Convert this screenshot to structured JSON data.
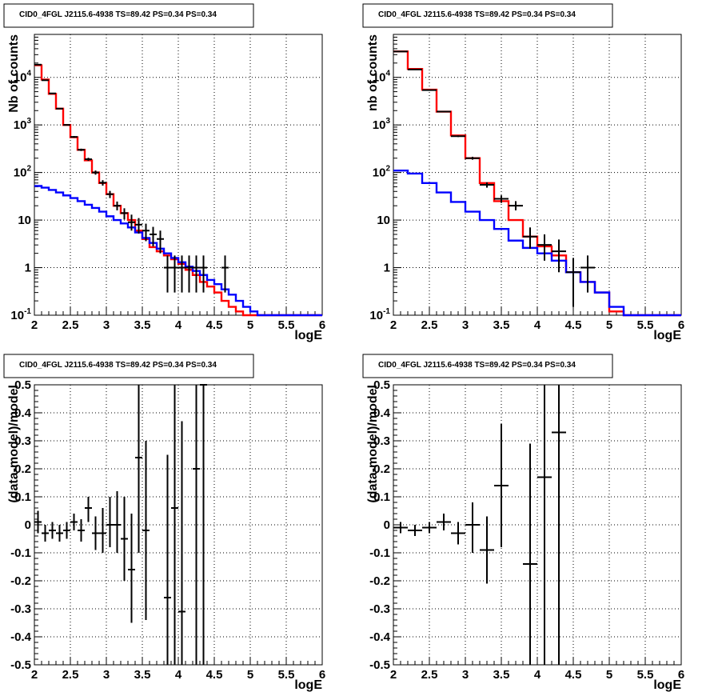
{
  "colors": {
    "model": "#ff0000",
    "background_model": "#0000ff",
    "data": "#000000",
    "grid": "#000000"
  },
  "chart_data": [
    {
      "type": "line",
      "title": "CID0_4FGL J2115.6-4938 TS=89.42 PS=0.34 PS=0.34",
      "xlabel": "logE",
      "ylabel": "Nb of counts",
      "xlim": [
        2,
        6
      ],
      "ylim": [
        0.1,
        80000
      ],
      "yscale": "log",
      "grid": true,
      "xticks": [
        "2",
        "2.5",
        "3",
        "3.5",
        "4",
        "4.5",
        "5",
        "5.5",
        "6"
      ],
      "yticks": [
        {
          "v": 0.1,
          "label": "10^-1"
        },
        {
          "v": 1,
          "label": "1"
        },
        {
          "v": 10,
          "label": "10"
        },
        {
          "v": 100,
          "label": "10^2"
        },
        {
          "v": 1000,
          "label": "10^3"
        },
        {
          "v": 10000,
          "label": "10^4"
        }
      ],
      "series": [
        {
          "style": "hist",
          "color_key": "model",
          "edges": [
            2,
            2.1,
            2.2,
            2.3,
            2.4,
            2.5,
            2.6,
            2.7,
            2.8,
            2.9,
            3,
            3.1,
            3.2,
            3.3,
            3.4,
            3.5,
            3.6,
            3.7,
            3.8,
            3.9,
            4,
            4.1,
            4.2,
            4.3,
            4.4,
            4.5,
            4.6,
            4.7,
            4.8,
            4.9,
            5,
            5.1,
            5.2,
            5.3,
            5.4,
            5.5,
            5.6,
            5.7,
            5.8,
            5.9,
            6
          ],
          "values": [
            18000,
            9000,
            4500,
            2200,
            1000,
            550,
            300,
            180,
            100,
            60,
            35,
            20,
            14,
            10,
            6,
            4,
            2.7,
            2.2,
            1.8,
            1.5,
            1.2,
            0.9,
            0.7,
            0.5,
            0.4,
            0.3,
            0.2,
            0.15,
            0.12,
            0.1,
            0.1,
            0.1,
            0.1,
            0.1,
            0.1,
            0.1,
            0.1,
            0.1,
            0.1,
            0.1
          ]
        },
        {
          "style": "hist",
          "color_key": "background_model",
          "edges": [
            2,
            2.1,
            2.2,
            2.3,
            2.4,
            2.5,
            2.6,
            2.7,
            2.8,
            2.9,
            3,
            3.1,
            3.2,
            3.3,
            3.4,
            3.5,
            3.6,
            3.7,
            3.8,
            3.9,
            4,
            4.1,
            4.2,
            4.3,
            4.4,
            4.5,
            4.6,
            4.7,
            4.8,
            4.9,
            5,
            5.1,
            5.2,
            5.3,
            5.4,
            5.5,
            5.6,
            5.7,
            5.8,
            5.9,
            6
          ],
          "values": [
            52,
            48,
            43,
            38,
            33,
            29,
            25,
            21,
            18,
            15,
            12,
            10,
            8.5,
            7,
            5.5,
            4.2,
            3.3,
            2.5,
            2,
            1.6,
            1.3,
            1.05,
            0.85,
            0.7,
            0.55,
            0.45,
            0.35,
            0.27,
            0.2,
            0.15,
            0.12,
            0.1,
            0.1,
            0.1,
            0.1,
            0.1,
            0.1,
            0.1,
            0.1,
            0.1
          ]
        },
        {
          "style": "errorbar",
          "color_key": "data",
          "xerr": 0.05,
          "x": [
            2.05,
            2.15,
            2.25,
            2.35,
            2.45,
            2.55,
            2.65,
            2.75,
            2.85,
            2.95,
            3.05,
            3.15,
            3.25,
            3.35,
            3.45,
            3.55,
            3.65,
            3.75,
            3.85,
            3.95,
            4.05,
            4.15,
            4.25,
            4.35,
            4.65
          ],
          "y": [
            18500,
            8700,
            4600,
            2200,
            1000,
            560,
            300,
            190,
            100,
            61,
            35,
            20,
            14,
            9,
            8,
            6,
            5,
            4,
            1,
            1,
            1,
            1,
            1,
            1,
            1
          ],
          "ylo": [
            18360,
            8600,
            4530,
            2150,
            970,
            535,
            283,
            176,
            90,
            53,
            29,
            16,
            10.3,
            6,
            5.2,
            3.6,
            2.8,
            2,
            0.3,
            0.3,
            0.3,
            0.3,
            0.3,
            0.3,
            0.3
          ],
          "yhi": [
            18640,
            8800,
            4670,
            2250,
            1030,
            585,
            317,
            204,
            110,
            69,
            41,
            24.5,
            17.7,
            13,
            11,
            8.4,
            7.2,
            6,
            1.8,
            1.8,
            1.8,
            1.8,
            1.8,
            1.8,
            1.8
          ]
        }
      ]
    },
    {
      "type": "line",
      "title": "CID0_4FGL J2115.6-4938 TS=89.42 PS=0.34 PS=0.34",
      "xlabel": "logE",
      "ylabel": "nb of counts",
      "xlim": [
        2,
        6
      ],
      "ylim": [
        0.1,
        80000
      ],
      "yscale": "log",
      "grid": true,
      "xticks": [
        "2",
        "2.5",
        "3",
        "3.5",
        "4",
        "4.5",
        "5",
        "5.5",
        "6"
      ],
      "yticks": [
        {
          "v": 0.1,
          "label": "10^-1"
        },
        {
          "v": 1,
          "label": "1"
        },
        {
          "v": 10,
          "label": "10"
        },
        {
          "v": 100,
          "label": "10^2"
        },
        {
          "v": 1000,
          "label": "10^3"
        },
        {
          "v": 10000,
          "label": "10^4"
        }
      ],
      "series": [
        {
          "style": "hist",
          "color_key": "model",
          "edges": [
            2,
            2.2,
            2.4,
            2.6,
            2.8,
            3,
            3.2,
            3.4,
            3.6,
            3.8,
            4,
            4.2,
            4.4,
            4.6,
            4.8,
            5,
            5.2,
            5.4,
            5.6,
            5.8,
            6
          ],
          "values": [
            35000,
            15000,
            5500,
            1900,
            600,
            200,
            60,
            25,
            10,
            4.5,
            2.8,
            1.8,
            0.8,
            0.5,
            0.3,
            0.12,
            0.1,
            0.1,
            0.1,
            0.1
          ]
        },
        {
          "style": "hist",
          "color_key": "background_model",
          "edges": [
            2,
            2.2,
            2.4,
            2.6,
            2.8,
            3,
            3.2,
            3.4,
            3.6,
            3.8,
            4,
            4.2,
            4.4,
            4.6,
            4.8,
            5,
            5.2,
            5.4,
            5.6,
            5.8,
            6
          ],
          "values": [
            110,
            95,
            60,
            38,
            24,
            15,
            10,
            6.5,
            3.7,
            2.6,
            2,
            1.4,
            0.8,
            0.5,
            0.3,
            0.15,
            0.1,
            0.1,
            0.1,
            0.1
          ]
        },
        {
          "style": "errorbar",
          "color_key": "data",
          "xerr": 0.1,
          "x": [
            2.1,
            2.3,
            2.5,
            2.7,
            2.9,
            3.1,
            3.3,
            3.5,
            3.7,
            3.9,
            4.1,
            4.3,
            4.5,
            4.7
          ],
          "y": [
            35000,
            14600,
            5400,
            1910,
            580,
            200,
            55,
            28,
            20,
            4.5,
            3,
            2.2,
            0.8,
            1
          ],
          "ylo": [
            34800,
            14480,
            5330,
            1870,
            557,
            186,
            48,
            23,
            16,
            2.5,
            1.4,
            0.8,
            0.15,
            0.3
          ],
          "yhi": [
            35200,
            14720,
            5470,
            1950,
            603,
            214,
            62,
            33,
            25,
            7,
            5,
            3.9,
            1.6,
            1.8
          ]
        }
      ]
    },
    {
      "type": "scatter",
      "title": "CID0_4FGL J2115.6-4938 TS=89.42 PS=0.34 PS=0.34",
      "xlabel": "logE",
      "ylabel": "(data-model)/model",
      "xlim": [
        2,
        6
      ],
      "ylim": [
        -0.5,
        0.5
      ],
      "yscale": "linear",
      "grid": true,
      "xticks": [
        "2",
        "2.5",
        "3",
        "3.5",
        "4",
        "4.5",
        "5",
        "5.5",
        "6"
      ],
      "yticks": [
        {
          "v": -0.5,
          "label": "-0.5"
        },
        {
          "v": -0.4,
          "label": "-0.4"
        },
        {
          "v": -0.3,
          "label": "-0.3"
        },
        {
          "v": -0.2,
          "label": "-0.2"
        },
        {
          "v": -0.1,
          "label": "-0.1"
        },
        {
          "v": 0,
          "label": "0"
        },
        {
          "v": 0.1,
          "label": "0.1"
        },
        {
          "v": 0.2,
          "label": "0.2"
        },
        {
          "v": 0.3,
          "label": "0.3"
        },
        {
          "v": 0.4,
          "label": "0.4"
        },
        {
          "v": 0.5,
          "label": "0.5"
        }
      ],
      "series": [
        {
          "style": "errorbar",
          "color_key": "data",
          "xerr": 0.05,
          "x": [
            2.05,
            2.15,
            2.25,
            2.35,
            2.45,
            2.55,
            2.65,
            2.75,
            2.85,
            2.95,
            3.05,
            3.15,
            3.25,
            3.35,
            3.45,
            3.55,
            3.85,
            3.95,
            4.05,
            4.25,
            4.35
          ],
          "y": [
            0.01,
            -0.03,
            -0.02,
            -0.03,
            -0.02,
            0.01,
            -0.02,
            0.06,
            -0.03,
            -0.03,
            0,
            0,
            -0.05,
            -0.16,
            0.24,
            -0.02,
            -0.26,
            0.06,
            -0.31,
            0.2,
            0.5
          ],
          "ylo": [
            -0.03,
            -0.06,
            -0.05,
            -0.06,
            -0.05,
            -0.02,
            -0.06,
            0.01,
            -0.09,
            -0.1,
            -0.08,
            -0.1,
            -0.2,
            -0.35,
            -0.1,
            -0.34,
            -0.5,
            -0.5,
            -0.5,
            -0.5,
            -0.5
          ],
          "yhi": [
            0.05,
            0,
            0.01,
            0,
            0.01,
            0.04,
            0.02,
            0.1,
            0.03,
            0.06,
            0.1,
            0.12,
            0.1,
            0.04,
            0.5,
            0.3,
            0.25,
            0.5,
            0.37,
            0.5,
            0.5
          ]
        }
      ]
    },
    {
      "type": "scatter",
      "title": "CID0_4FGL J2115.6-4938 TS=89.42 PS=0.34 PS=0.34",
      "xlabel": "logE",
      "ylabel": "(data-model)/model",
      "xlim": [
        2,
        6
      ],
      "ylim": [
        -0.5,
        0.5
      ],
      "yscale": "linear",
      "grid": true,
      "xticks": [
        "2",
        "2.5",
        "3",
        "3.5",
        "4",
        "4.5",
        "5",
        "5.5",
        "6"
      ],
      "yticks": [
        {
          "v": -0.5,
          "label": "-0.5"
        },
        {
          "v": -0.4,
          "label": "-0.4"
        },
        {
          "v": -0.3,
          "label": "-0.3"
        },
        {
          "v": -0.2,
          "label": "-0.2"
        },
        {
          "v": -0.1,
          "label": "-0.1"
        },
        {
          "v": 0,
          "label": "0"
        },
        {
          "v": 0.1,
          "label": "0.1"
        },
        {
          "v": 0.2,
          "label": "0.2"
        },
        {
          "v": 0.3,
          "label": "0.3"
        },
        {
          "v": 0.4,
          "label": "0.4"
        },
        {
          "v": 0.5,
          "label": "0.5"
        }
      ],
      "series": [
        {
          "style": "errorbar",
          "color_key": "data",
          "xerr": 0.1,
          "x": [
            2.1,
            2.3,
            2.5,
            2.7,
            2.9,
            3.1,
            3.3,
            3.5,
            3.9,
            4.1,
            4.3
          ],
          "y": [
            -0.01,
            -0.02,
            -0.01,
            0.01,
            -0.03,
            0,
            -0.09,
            0.14,
            -0.14,
            0.17,
            0.33
          ],
          "ylo": [
            -0.03,
            -0.04,
            -0.03,
            -0.02,
            -0.07,
            -0.1,
            -0.21,
            -0.08,
            -0.5,
            -0.5,
            -0.5
          ],
          "yhi": [
            0.01,
            0,
            0.01,
            0.04,
            0.01,
            0.08,
            0.03,
            0.36,
            0.29,
            0.5,
            0.5
          ]
        }
      ]
    }
  ]
}
